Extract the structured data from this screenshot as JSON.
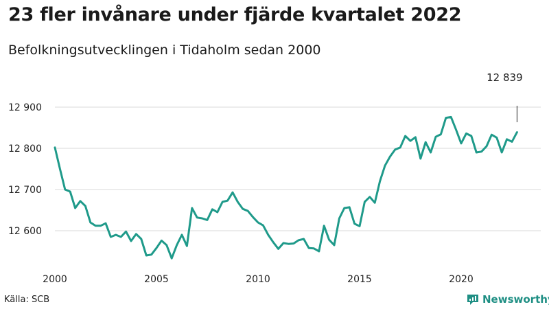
{
  "title": "23 fler invånare under fjärde kvartalet 2022",
  "subtitle": "Befolkningsutvecklingen i Tidaholm sedan 2000",
  "source": "Källa: SCB",
  "brand": {
    "name": "Newsworthy",
    "icon": "newsworthy-logo-icon",
    "color": "#1f8f84"
  },
  "chart_data": {
    "type": "line",
    "title": "23 fler invånare under fjärde kvartalet 2022",
    "subtitle": "Befolkningsutvecklingen i Tidaholm sedan 2000",
    "x_start_year": 2000,
    "x_step": "quarter",
    "x_ticks": [
      2000,
      2005,
      2010,
      2015,
      2020
    ],
    "x_tick_labels": [
      "2000",
      "2005",
      "2010",
      "2015",
      "2020"
    ],
    "y_ticks": [
      12600,
      12700,
      12800,
      12900
    ],
    "y_tick_labels": [
      "12 600",
      "12 700",
      "12 800",
      "12 900"
    ],
    "ylim": [
      12530,
      12900
    ],
    "grid": true,
    "series_color": "#1f9a8a",
    "end_label": "12 839",
    "values": [
      12802,
      12750,
      12700,
      12695,
      12655,
      12672,
      12660,
      12620,
      12612,
      12612,
      12618,
      12585,
      12590,
      12585,
      12598,
      12575,
      12592,
      12580,
      12540,
      12542,
      12558,
      12576,
      12565,
      12533,
      12565,
      12590,
      12563,
      12655,
      12632,
      12630,
      12626,
      12652,
      12645,
      12670,
      12673,
      12693,
      12670,
      12653,
      12648,
      12633,
      12620,
      12613,
      12590,
      12572,
      12556,
      12570,
      12568,
      12569,
      12577,
      12580,
      12558,
      12557,
      12550,
      12612,
      12578,
      12565,
      12630,
      12655,
      12657,
      12617,
      12611,
      12670,
      12682,
      12668,
      12720,
      12758,
      12780,
      12797,
      12802,
      12830,
      12818,
      12827,
      12775,
      12815,
      12790,
      12828,
      12834,
      12874,
      12876,
      12845,
      12812,
      12836,
      12830,
      12790,
      12792,
      12805,
      12833,
      12826,
      12790,
      12822,
      12816,
      12839
    ]
  }
}
